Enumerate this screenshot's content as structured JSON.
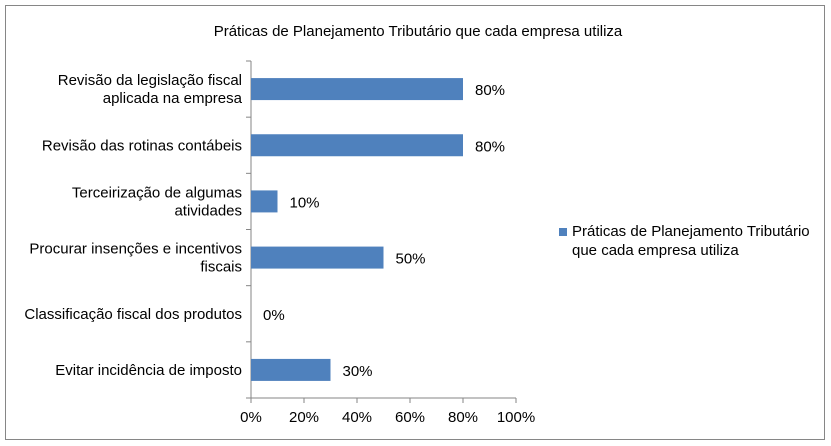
{
  "chart_data": {
    "type": "bar",
    "orientation": "horizontal",
    "title": "Práticas de Planejamento Tributário que cada empresa utiliza",
    "categories": [
      [
        "Revisão da legislação fiscal",
        "aplicada na empresa"
      ],
      [
        "Revisão das rotinas contábeis"
      ],
      [
        "Terceirização de algumas",
        "atividades"
      ],
      [
        "Procurar insenções e incentivos",
        "fiscais"
      ],
      [
        "Classificação fiscal dos produtos"
      ],
      [
        "Evitar incidência de imposto"
      ]
    ],
    "series": [
      {
        "name": "Práticas de Planejamento Tributário que cada empresa utiliza",
        "name_lines": [
          "Práticas de Planejamento Tributário",
          "que cada empresa utiliza"
        ],
        "values": [
          80,
          80,
          10,
          50,
          0,
          30
        ],
        "data_labels": [
          "80%",
          "80%",
          "10%",
          "50%",
          "0%",
          "30%"
        ],
        "color": "#4f81bd"
      }
    ],
    "xlim": [
      0,
      100
    ],
    "x_ticks": [
      0,
      20,
      40,
      60,
      80,
      100
    ],
    "x_tick_labels": [
      "0%",
      "20%",
      "40%",
      "60%",
      "80%",
      "100%"
    ],
    "grid": false,
    "legend_position": "right"
  }
}
